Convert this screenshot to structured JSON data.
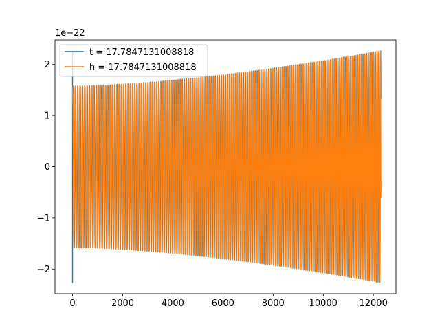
{
  "chart_data": {
    "type": "line",
    "title": "",
    "xlabel": "",
    "ylabel": "",
    "y_offset_label": "1e−22",
    "xlim": [
      -700,
      12900
    ],
    "ylim": [
      -2.48,
      2.48
    ],
    "x_ticks": [
      0,
      2000,
      4000,
      6000,
      8000,
      10000,
      12000
    ],
    "x_tick_labels": [
      "0",
      "2000",
      "4000",
      "6000",
      "8000",
      "10000",
      "12000"
    ],
    "y_ticks": [
      -2,
      -1,
      0,
      1,
      2
    ],
    "y_tick_labels": [
      "−2",
      "−1",
      "0",
      "1",
      "2"
    ],
    "grid": false,
    "legend_position": "top-left",
    "series": [
      {
        "name": "t = 17.7847131008818",
        "color": "#1f77b4",
        "x_range": [
          0,
          12300
        ],
        "envelope_start": 1.58,
        "envelope_end": 2.27,
        "spike_at_start": 2.27,
        "cycles": 130
      },
      {
        "name": "h = 17.7847131008818",
        "color": "#ff7f0e",
        "x_range": [
          0,
          12300
        ],
        "envelope_start": 1.58,
        "envelope_end": 2.27,
        "cycles": 130
      }
    ]
  }
}
